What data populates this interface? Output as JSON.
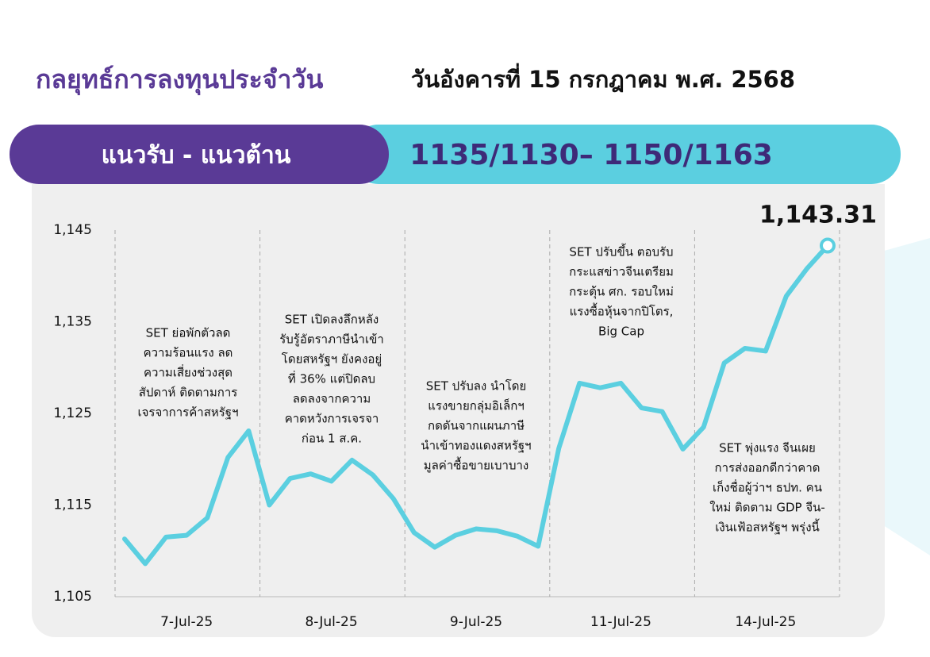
{
  "header": {
    "title": "กลยุทธ์การลงทุนประจำวัน",
    "date": "วันอังคารที่ 15 กรกฎาคม พ.ศ. 2568"
  },
  "banner": {
    "label": "แนวรับ - แนวต้าน",
    "value": "1135/1130– 1150/1163"
  },
  "chart_data": {
    "type": "line",
    "categories": [
      null,
      null,
      null,
      "7-Jul-25",
      null,
      null,
      null,
      null,
      null,
      null,
      "8-Jul-25",
      null,
      null,
      null,
      null,
      null,
      null,
      "9-Jul-25",
      null,
      null,
      null,
      null,
      null,
      null,
      "11-Jul-25",
      null,
      null,
      null,
      null,
      null,
      null,
      "14-Jul-25",
      null,
      null,
      null
    ],
    "values": [
      1111.3,
      1108.6,
      1111.5,
      1111.7,
      1113.6,
      1120.2,
      1123.1,
      1115.0,
      1117.9,
      1118.4,
      1117.6,
      1119.9,
      1118.3,
      1115.7,
      1112.0,
      1110.4,
      1111.7,
      1112.4,
      1112.2,
      1111.6,
      1110.5,
      1121.2,
      1128.3,
      1127.8,
      1128.3,
      1125.6,
      1125.2,
      1121.1,
      1123.5,
      1130.5,
      1132.1,
      1131.8,
      1137.8,
      1140.8,
      1143.31
    ],
    "value_labels": [
      null,
      null,
      null,
      null,
      null,
      null,
      null,
      null,
      null,
      null,
      null,
      null,
      null,
      null,
      null,
      null,
      null,
      null,
      null,
      null,
      null,
      null,
      null,
      null,
      null,
      null,
      null,
      null,
      null,
      null,
      null,
      null,
      null,
      null,
      "1,143.31"
    ],
    "color": "#5bcfe0",
    "ylim": [
      1105,
      1145
    ],
    "yticks": [
      {
        "value": 1105,
        "label": "1,105"
      },
      {
        "value": 1115,
        "label": "1,115"
      },
      {
        "value": 1125,
        "label": "1,125"
      },
      {
        "value": 1135,
        "label": "1,135"
      },
      {
        "value": 1145,
        "label": "1,145"
      }
    ],
    "annotations": [
      [
        "SET ย่อพักตัวลด",
        "ความร้อนแรง ลด",
        "ความเสี่ยงช่วงสุด",
        "สัปดาห์ ติดตามการ",
        "เจรจาการค้าสหรัฐฯ"
      ],
      [
        "SET เปิดลงลึกหลัง",
        "รับรู้อัตราภาษีนำเข้า",
        "โดยสหรัฐฯ ยังคงอยู่",
        "ที่ 36% แต่ปิดลบ",
        "ลดลงจากความ",
        "คาดหวังการเจรจา",
        "ก่อน 1 ส.ค."
      ],
      [
        "SET ปรับลง นำโดย",
        "แรงขายกลุ่มอิเล็กฯ",
        "กดดันจากแผนภาษี",
        "นำเข้าทองแดงสหรัฐฯ",
        "มูลค่าซื้อขายเบาบาง"
      ],
      [
        "SET ปรับขึ้น ตอบรับ",
        "กระแสข่าวจีนเตรียม",
        "กระตุ้น ศก. รอบใหม่",
        "แรงซื้อหุ้นจากปิโตร,",
        "Big Cap"
      ],
      [
        "SET พุ่งแรง จีนเผย",
        "การส่งออกดีกว่าคาด",
        "เก็งชื่อผู้ว่าฯ ธปท. คน",
        "ใหม่ ติดตาม GDP จีน-",
        "เงินเฟ้อสหรัฐฯ พรุ่งนี้"
      ]
    ]
  }
}
